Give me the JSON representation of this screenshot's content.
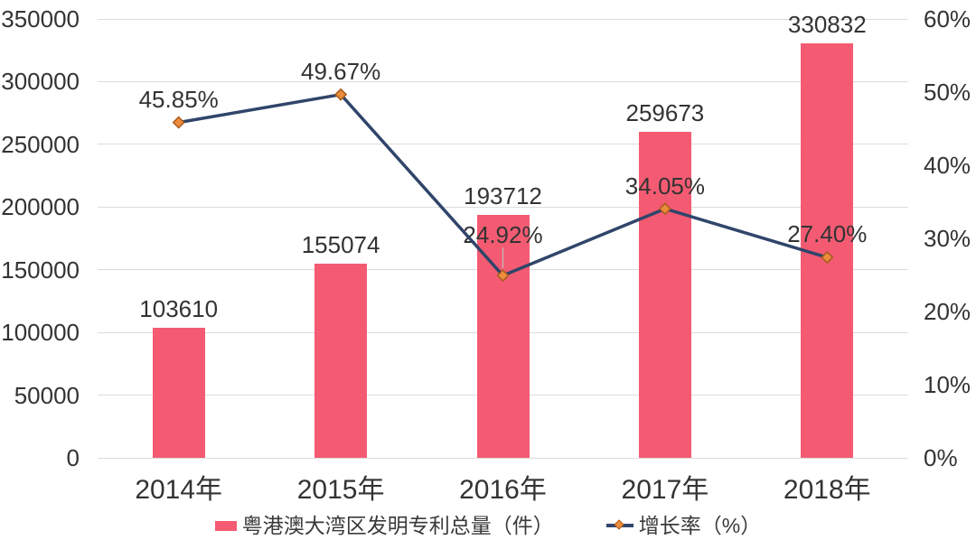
{
  "chart_data": {
    "type": "bar",
    "combo": "bar+line",
    "categories": [
      "2014年",
      "2015年",
      "2016年",
      "2017年",
      "2018年"
    ],
    "series": [
      {
        "name": "粤港澳大湾区发明专利总量（件）",
        "type": "bar",
        "axis": "left",
        "values": [
          103610,
          155074,
          193712,
          259673,
          330832
        ],
        "labels": [
          "103610",
          "155074",
          "193712",
          "259673",
          "330832"
        ]
      },
      {
        "name": "增长率（%）",
        "type": "line",
        "axis": "right",
        "values": [
          45.85,
          49.67,
          24.92,
          34.05,
          27.4
        ],
        "labels": [
          "45.85%",
          "49.67%",
          "24.92%",
          "34.05%",
          "27.40%"
        ]
      }
    ],
    "left_axis": {
      "min": 0,
      "max": 350000,
      "step": 50000,
      "ticks": [
        "0",
        "50000",
        "100000",
        "150000",
        "200000",
        "250000",
        "300000",
        "350000"
      ]
    },
    "right_axis": {
      "min": 0,
      "max": 60,
      "step": 10,
      "ticks": [
        "0%",
        "10%",
        "20%",
        "30%",
        "40%",
        "50%",
        "60%"
      ]
    },
    "grid": true,
    "legend_position": "bottom",
    "title": "",
    "xlabel": "",
    "ylabel": "",
    "label_offsets_above_marker": [
      26,
      26,
      45,
      25,
      26
    ],
    "leader_line_index": 2
  },
  "colors": {
    "bar": "#f45b72",
    "line": "#30456a",
    "marker_fill": "#ec8c3c",
    "marker_border": "#a85b1e",
    "gridline": "#dbdbdb",
    "text": "#333333",
    "leader": "#bfbfbf",
    "background": "#ffffff"
  },
  "legend": {
    "bar_label": "粤港澳大湾区发明专利总量（件）",
    "line_label": "增长率（%）"
  }
}
